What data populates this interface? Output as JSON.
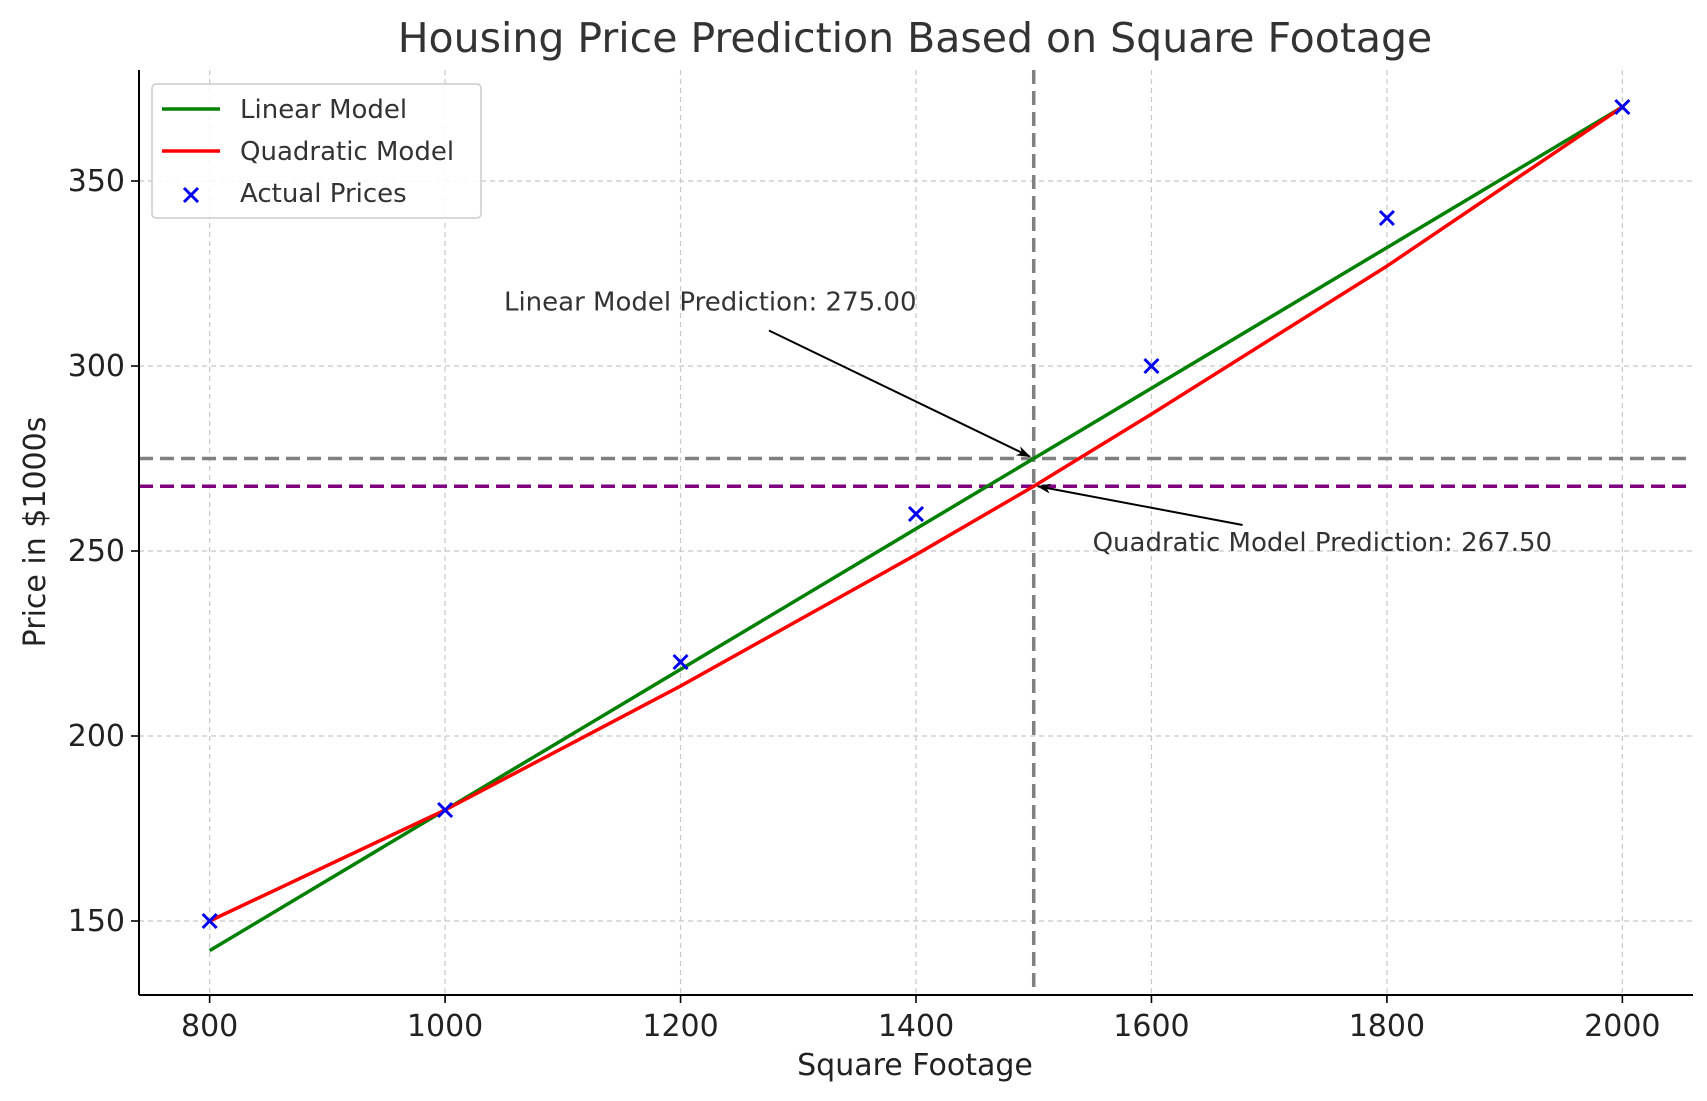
{
  "chart_data": {
    "type": "line",
    "title": "Housing Price Prediction Based on Square Footage",
    "xlabel": "Square Footage",
    "ylabel": "Price in $1000s",
    "xlim": [
      740,
      2060
    ],
    "ylim": [
      130,
      380
    ],
    "x_ticks": [
      800,
      1000,
      1200,
      1400,
      1600,
      1800,
      2000
    ],
    "y_ticks": [
      150,
      200,
      250,
      300,
      350
    ],
    "grid": true,
    "legend_position": "upper-left",
    "series": [
      {
        "name": "Linear Model",
        "kind": "line",
        "color": "#008000",
        "x": [
          800,
          1000,
          1200,
          1400,
          1500,
          1600,
          1800,
          2000
        ],
        "y": [
          142,
          180,
          218,
          256,
          275,
          294,
          332,
          370
        ]
      },
      {
        "name": "Quadratic Model",
        "kind": "line",
        "color": "#ff0000",
        "x": [
          800,
          1000,
          1200,
          1400,
          1500,
          1600,
          1800,
          2000
        ],
        "y": [
          150,
          180,
          213.5,
          249,
          267.5,
          287,
          327,
          370
        ]
      },
      {
        "name": "Actual Prices",
        "kind": "scatter",
        "marker": "x",
        "color": "#0000ee",
        "x": [
          800,
          1000,
          1200,
          1400,
          1600,
          1800,
          2000
        ],
        "y": [
          150,
          180,
          220,
          260,
          300,
          340,
          370
        ]
      }
    ],
    "reference_lines": [
      {
        "orientation": "vertical",
        "value": 1500,
        "color": "#808080",
        "style": "dashed"
      },
      {
        "orientation": "horizontal",
        "value": 275,
        "color": "#808080",
        "style": "dashed"
      },
      {
        "orientation": "horizontal",
        "value": 267.5,
        "color": "#800080",
        "style": "dashed"
      }
    ],
    "annotations": [
      {
        "text": "Linear Model Prediction: 275.00",
        "point": [
          1500,
          275
        ],
        "text_pos": [
          1050,
          315
        ],
        "color": "#000000"
      },
      {
        "text": "Quadratic Model Prediction: 267.50",
        "point": [
          1500,
          267.5
        ],
        "text_pos": [
          1550,
          250
        ],
        "color": "#000000"
      }
    ]
  }
}
